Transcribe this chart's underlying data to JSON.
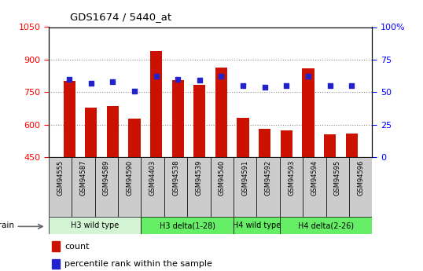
{
  "title": "GDS1674 / 5440_at",
  "samples": [
    "GSM94555",
    "GSM94587",
    "GSM94589",
    "GSM94590",
    "GSM94403",
    "GSM94538",
    "GSM94539",
    "GSM94540",
    "GSM94591",
    "GSM94592",
    "GSM94593",
    "GSM94594",
    "GSM94595",
    "GSM94596"
  ],
  "counts": [
    800,
    680,
    685,
    628,
    940,
    805,
    785,
    865,
    632,
    580,
    572,
    860,
    555,
    560
  ],
  "percentiles": [
    60,
    57,
    58,
    51,
    62,
    60,
    59,
    62,
    55,
    54,
    55,
    62,
    55,
    55
  ],
  "ylim_left": [
    450,
    1050
  ],
  "ylim_right": [
    0,
    100
  ],
  "yticks_left": [
    450,
    600,
    750,
    900,
    1050
  ],
  "yticks_right": [
    0,
    25,
    50,
    75,
    100
  ],
  "groups": [
    {
      "label": "H3 wild type",
      "start": 0,
      "end": 4,
      "color": "#d4f5d4"
    },
    {
      "label": "H3 delta(1-28)",
      "start": 4,
      "end": 8,
      "color": "#66ee66"
    },
    {
      "label": "H4 wild type",
      "start": 8,
      "end": 10,
      "color": "#66ee66"
    },
    {
      "label": "H4 delta(2-26)",
      "start": 10,
      "end": 14,
      "color": "#66ee66"
    }
  ],
  "bar_color": "#cc1100",
  "dot_color": "#2222cc",
  "bar_bottom": 450,
  "grid_color": "#888888",
  "bg_color": "#ffffff",
  "tick_bg": "#cccccc",
  "legend_items": [
    "count",
    "percentile rank within the sample"
  ]
}
